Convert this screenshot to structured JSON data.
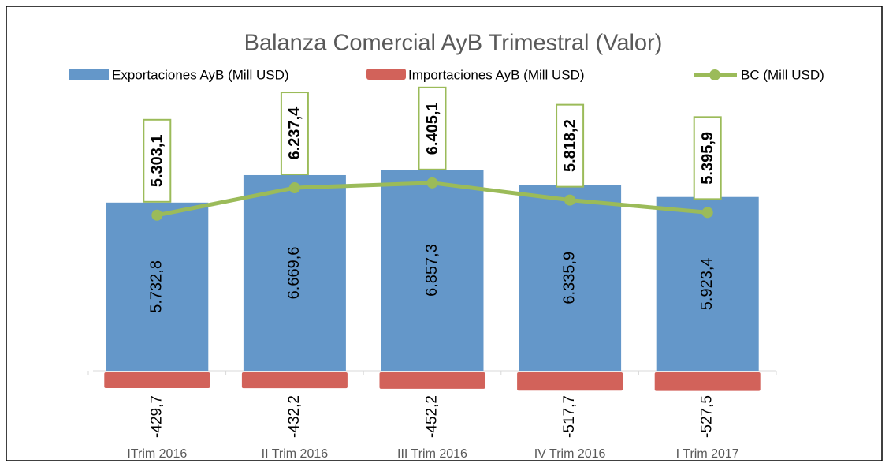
{
  "chart_data": {
    "type": "bar",
    "title": "Balanza Comercial AyB Trimestral (Valor)",
    "categories": [
      "ITrim 2016",
      "II Trim 2016",
      "III Trim 2016",
      "IV Trim 2016",
      "I Trim 2017"
    ],
    "series": [
      {
        "name": "Exportaciones AyB (Mill USD)",
        "type": "bar",
        "color": "#6497c9",
        "values": [
          5732.8,
          6669.6,
          6857.3,
          6335.9,
          5923.4
        ],
        "value_labels": [
          "5.732,8",
          "6.669,6",
          "6.857,3",
          "6.335,9",
          "5.923,4"
        ]
      },
      {
        "name": "Importaciones AyB (Mill USD)",
        "type": "bar",
        "color": "#d2625a",
        "values": [
          -429.7,
          -432.2,
          -452.2,
          -517.7,
          -527.5
        ],
        "value_labels": [
          "-429,7",
          "-432,2",
          "-452,2",
          "-517,7",
          "-527,5"
        ]
      },
      {
        "name": "BC (Mill USD)",
        "type": "line",
        "color": "#9bbb59",
        "values": [
          5303.1,
          6237.4,
          6405.1,
          5818.2,
          5395.9
        ],
        "value_labels": [
          "5.303,1",
          "6.237,4",
          "6.405,1",
          "5.818,2",
          "5.395,9"
        ]
      }
    ]
  }
}
